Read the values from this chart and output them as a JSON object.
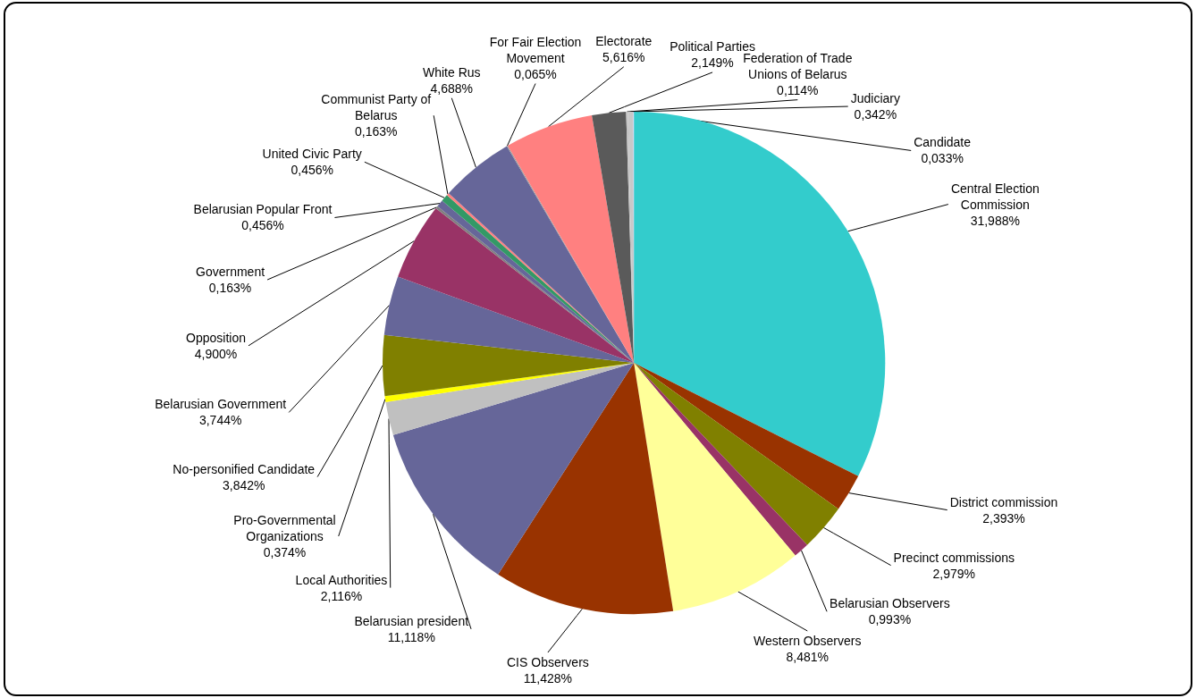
{
  "chart_data": {
    "type": "pie",
    "categories": [
      "Central Election Commission",
      "District commission",
      "Precinct commissions",
      "Belarusian Observers",
      "Western Observers",
      "CIS Observers",
      "Belarusian president",
      "Local Authorities",
      "Pro-Governmental Organizations",
      "No-personified Candidate",
      "Belarusian Government",
      "Opposition",
      "Government",
      "Belarusian Popular Front",
      "United Civic Party",
      "Communist Party of Belarus",
      "White Rus",
      "For Fair Election Movement",
      "Electorate",
      "Political Parties",
      "Federation of Trade Unions of Belarus",
      "Judiciary",
      "Candidate"
    ],
    "values": [
      31.988,
      2.393,
      2.979,
      0.993,
      8.481,
      11.428,
      11.118,
      2.116,
      0.374,
      3.842,
      3.744,
      4.9,
      0.163,
      0.456,
      0.456,
      0.163,
      4.688,
      0.065,
      5.616,
      2.149,
      0.114,
      0.342,
      0.033
    ],
    "value_labels": [
      "31,988%",
      "2,393%",
      "2,979%",
      "0,993%",
      "8,481%",
      "11,428%",
      "11,118%",
      "2,116%",
      "0,374%",
      "3,842%",
      "3,744%",
      "4,900%",
      "0,163%",
      "0,456%",
      "0,456%",
      "0,163%",
      "4,688%",
      "0,065%",
      "5,616%",
      "2,149%",
      "0,114%",
      "0,342%",
      "0,033%"
    ],
    "colors": [
      "#33cccc",
      "#993300",
      "#808000",
      "#993366",
      "#ffff99",
      "#993300",
      "#666699",
      "#c0c0c0",
      "#ffff00",
      "#808000",
      "#666699",
      "#993366",
      "#808080",
      "#666699",
      "#339966",
      "#ff8080",
      "#666699",
      "#969696",
      "#ff8080",
      "#5a5a5a",
      "#c0c0c0",
      "#c8c8c8",
      "#ccccff"
    ],
    "legend": false
  }
}
